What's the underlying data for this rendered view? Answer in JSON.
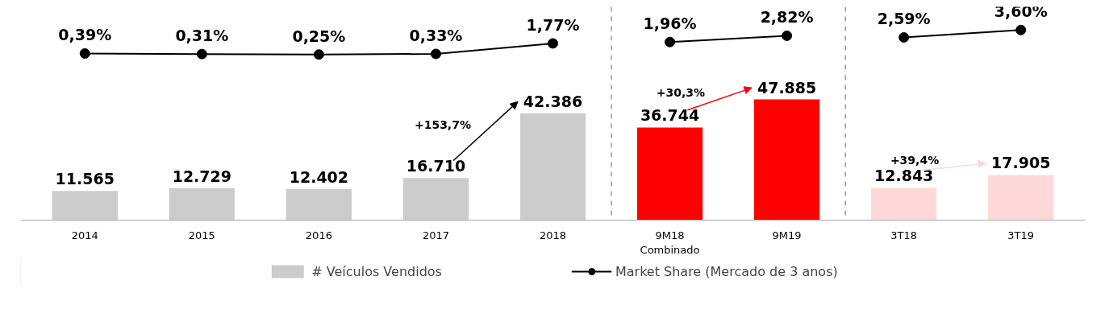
{
  "chart_data": [
    {
      "type": "line",
      "categories": [
        null,
        null,
        null,
        null,
        null,
        null,
        null,
        null,
        null
      ],
      "tick_labels": false,
      "marker": "circle",
      "series": [
        {
          "name": "Market Share (Mercado de 3 anos)",
          "color": "#000000",
          "values": [
            0.39,
            0.31,
            0.25,
            0.33,
            1.77,
            null,
            null,
            null,
            null
          ],
          "value_labels": [
            "0,39%",
            "0,31%",
            "0,25%",
            "0,33%",
            "1,77%",
            null,
            null,
            null,
            null
          ]
        },
        {
          "color": "#000000",
          "values": [
            null,
            null,
            null,
            null,
            null,
            1.96,
            2.82,
            null,
            null
          ],
          "value_labels": [
            null,
            null,
            null,
            null,
            null,
            "1,96%",
            "2,82%",
            null,
            null
          ]
        },
        {
          "color": "#000000",
          "values": [
            null,
            null,
            null,
            null,
            null,
            null,
            null,
            2.59,
            3.6
          ],
          "value_labels": [
            null,
            null,
            null,
            null,
            null,
            null,
            null,
            "2,59%",
            "3,60%"
          ]
        }
      ]
    },
    {
      "type": "bar",
      "categories": [
        "2014",
        "2015",
        "2016",
        "2017",
        "2018",
        "9M18\nCombinado",
        "9M19",
        "3T18",
        "3T19"
      ],
      "tick_labels": "x",
      "legend": "bottom",
      "series": [
        {
          "name": "# Veículos Vendidos",
          "colors": [
            "#cccccc",
            "#cccccc",
            "#cccccc",
            "#cccccc",
            "#cccccc",
            "#ff0000",
            "#ff0000",
            "#ffd9d9",
            "#ffd9d9"
          ],
          "values": [
            11565,
            12729,
            12402,
            16710,
            42386,
            36744,
            47885,
            12843,
            17905
          ],
          "value_labels": [
            "11.565",
            "12.729",
            "12.402",
            "16.710",
            "42.386",
            "36.744",
            "47.885",
            "12.843",
            "17.905"
          ]
        }
      ],
      "annotations": [
        "+153,7%",
        "+30,3%",
        "+39,4%"
      ]
    }
  ]
}
